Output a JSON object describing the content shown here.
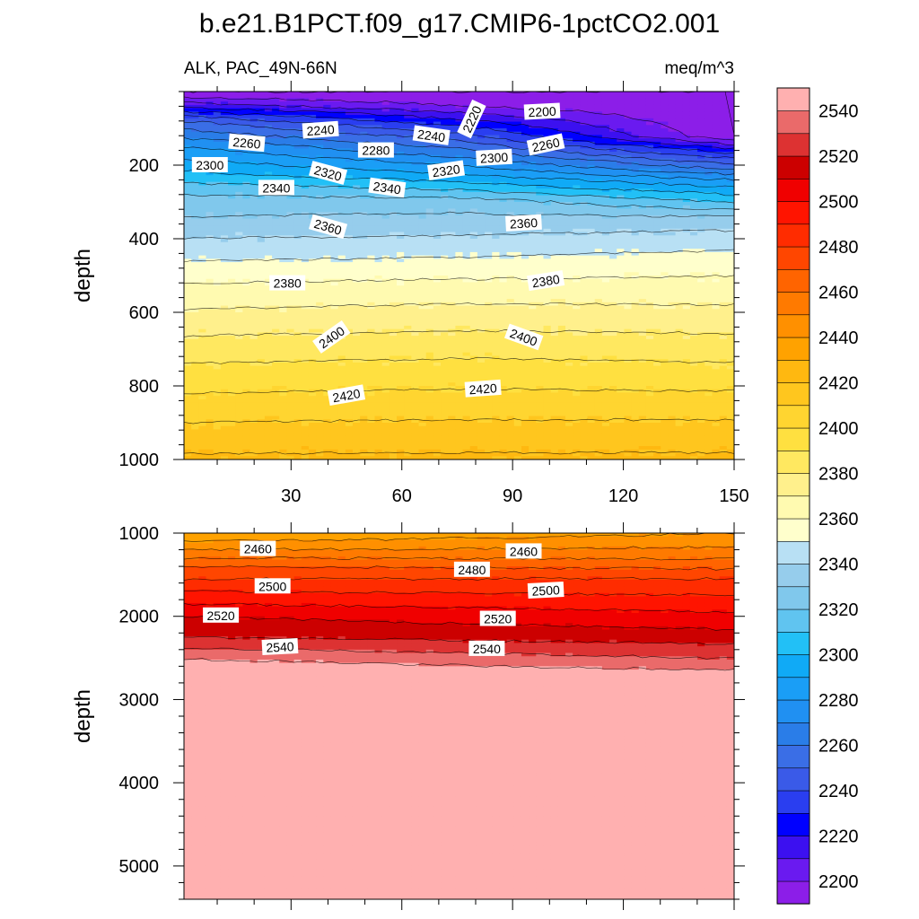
{
  "title": "b.e21.B1PCT.f09_g17.CMIP6-1pctCO2.001",
  "left_string": "ALK, PAC_49N-66N",
  "right_string": "meq/m^3",
  "chart_data": [
    {
      "type": "filled-contour",
      "panel": "upper",
      "xlabel": "",
      "ylabel": "depth",
      "xlim": [
        1,
        150
      ],
      "ylim": [
        1000,
        0
      ],
      "x_ticks": [
        "30",
        "60",
        "90",
        "120",
        "150"
      ],
      "y_ticks": [
        "200",
        "400",
        "600",
        "800",
        "1000"
      ],
      "surface_at_x": [
        {
          "x": 1,
          "values": [
            [
              0,
              2200
            ],
            [
              25,
              2215
            ],
            [
              80,
              2260
            ],
            [
              150,
              2290
            ],
            [
              280,
              2330
            ],
            [
              400,
              2350
            ],
            [
              520,
              2370
            ],
            [
              700,
              2395
            ],
            [
              900,
              2420
            ],
            [
              1000,
              2432
            ]
          ]
        },
        {
          "x": 75,
          "values": [
            [
              0,
              2200
            ],
            [
              40,
              2210
            ],
            [
              110,
              2250
            ],
            [
              200,
              2290
            ],
            [
              300,
              2335
            ],
            [
              420,
              2355
            ],
            [
              540,
              2375
            ],
            [
              700,
              2397
            ],
            [
              900,
              2421
            ],
            [
              1000,
              2432
            ]
          ]
        },
        {
          "x": 150,
          "values": [
            [
              0,
              2200
            ],
            [
              120,
              2200
            ],
            [
              160,
              2235
            ],
            [
              240,
              2290
            ],
            [
              350,
              2345
            ],
            [
              460,
              2365
            ],
            [
              580,
              2380
            ],
            [
              720,
              2398
            ],
            [
              900,
              2421
            ],
            [
              1000,
              2432
            ]
          ]
        }
      ],
      "contour_labels": [
        {
          "text": "2200",
          "x": 98,
          "depth": 55,
          "angle": -3
        },
        {
          "text": "2220",
          "x": 79,
          "depth": 75,
          "angle": -65
        },
        {
          "text": "2240",
          "x": 38,
          "depth": 105,
          "angle": -4
        },
        {
          "text": "2240",
          "x": 68,
          "depth": 120,
          "angle": 8
        },
        {
          "text": "2260",
          "x": 18,
          "depth": 140,
          "angle": 5
        },
        {
          "text": "2260",
          "x": 99,
          "depth": 145,
          "angle": -12
        },
        {
          "text": "2280",
          "x": 53,
          "depth": 160,
          "angle": 0
        },
        {
          "text": "2300",
          "x": 8,
          "depth": 200,
          "angle": 0
        },
        {
          "text": "2300",
          "x": 85,
          "depth": 180,
          "angle": -3
        },
        {
          "text": "2320",
          "x": 40,
          "depth": 222,
          "angle": 15
        },
        {
          "text": "2320",
          "x": 72,
          "depth": 215,
          "angle": -8
        },
        {
          "text": "2340",
          "x": 26,
          "depth": 262,
          "angle": 0
        },
        {
          "text": "2340",
          "x": 56,
          "depth": 262,
          "angle": 8
        },
        {
          "text": "2360",
          "x": 40,
          "depth": 368,
          "angle": 16
        },
        {
          "text": "2360",
          "x": 93,
          "depth": 358,
          "angle": -3
        },
        {
          "text": "2380",
          "x": 29,
          "depth": 521,
          "angle": 0
        },
        {
          "text": "2380",
          "x": 99,
          "depth": 515,
          "angle": -9
        },
        {
          "text": "2400",
          "x": 41,
          "depth": 668,
          "angle": -35
        },
        {
          "text": "2400",
          "x": 93,
          "depth": 668,
          "angle": 20
        },
        {
          "text": "2420",
          "x": 45,
          "depth": 826,
          "angle": -10
        },
        {
          "text": "2420",
          "x": 82,
          "depth": 808,
          "angle": -4
        }
      ]
    },
    {
      "type": "filled-contour",
      "panel": "lower",
      "xlabel": "",
      "ylabel": "depth",
      "xlim": [
        1,
        150
      ],
      "ylim": [
        5400,
        1000
      ],
      "x_ticks": [],
      "y_ticks": [
        "1000",
        "2000",
        "3000",
        "4000",
        "5000"
      ],
      "surface_at_x": [
        {
          "x": 1,
          "values": [
            [
              1000,
              2440
            ],
            [
              1150,
              2455
            ],
            [
              1400,
              2480
            ],
            [
              1700,
              2500
            ],
            [
              2000,
              2520
            ],
            [
              2250,
              2530
            ],
            [
              2450,
              2545
            ],
            [
              2650,
              2560
            ],
            [
              5400,
              2560
            ]
          ]
        },
        {
          "x": 150,
          "values": [
            [
              1000,
              2450
            ],
            [
              1250,
              2465
            ],
            [
              1550,
              2490
            ],
            [
              1850,
              2505
            ],
            [
              2200,
              2522
            ],
            [
              2420,
              2535
            ],
            [
              2600,
              2545
            ],
            [
              2720,
              2560
            ],
            [
              5400,
              2560
            ]
          ]
        }
      ],
      "contour_labels": [
        {
          "text": "2460",
          "x": 21,
          "depth": 1190,
          "angle": 0
        },
        {
          "text": "2460",
          "x": 93,
          "depth": 1220,
          "angle": 0
        },
        {
          "text": "2480",
          "x": 79,
          "depth": 1440,
          "angle": 0
        },
        {
          "text": "2500",
          "x": 25,
          "depth": 1640,
          "angle": 0
        },
        {
          "text": "2500",
          "x": 99,
          "depth": 1690,
          "angle": -3
        },
        {
          "text": "2520",
          "x": 11,
          "depth": 1990,
          "angle": 0
        },
        {
          "text": "2520",
          "x": 86,
          "depth": 2030,
          "angle": 0
        },
        {
          "text": "2540",
          "x": 27,
          "depth": 2370,
          "angle": -3
        },
        {
          "text": "2540",
          "x": 83,
          "depth": 2390,
          "angle": 0
        }
      ]
    }
  ],
  "colorbar": {
    "levels": [
      2200,
      2210,
      2220,
      2230,
      2240,
      2250,
      2260,
      2270,
      2280,
      2290,
      2300,
      2310,
      2320,
      2330,
      2340,
      2350,
      2360,
      2370,
      2380,
      2390,
      2400,
      2410,
      2420,
      2430,
      2440,
      2450,
      2460,
      2470,
      2480,
      2490,
      2500,
      2510,
      2520,
      2530,
      2540,
      2550
    ],
    "labels": [
      "2200",
      "2220",
      "2240",
      "2260",
      "2280",
      "2300",
      "2320",
      "2340",
      "2360",
      "2380",
      "2400",
      "2420",
      "2440",
      "2460",
      "2480",
      "2500",
      "2520",
      "2540"
    ],
    "colors": [
      "#8c1ee8",
      "#6a1af0",
      "#3c10f0",
      "#0000ff",
      "#2a3ef0",
      "#3a5ae8",
      "#3a6ee6",
      "#2a7de8",
      "#2090f2",
      "#1a9ef6",
      "#10aaf6",
      "#22c0f6",
      "#60c4f0",
      "#80c8ec",
      "#96cdec",
      "#b8e0f4",
      "#ffffcc",
      "#fffab0",
      "#fff08c",
      "#ffe860",
      "#ffe040",
      "#ffd530",
      "#ffc61e",
      "#ffb810",
      "#ffa200",
      "#ff9000",
      "#ff7a00",
      "#ff6400",
      "#ff4600",
      "#ff2c00",
      "#ff1400",
      "#f00000",
      "#cc0000",
      "#dd3232",
      "#ea6a6a",
      "#ffb0b0"
    ]
  }
}
